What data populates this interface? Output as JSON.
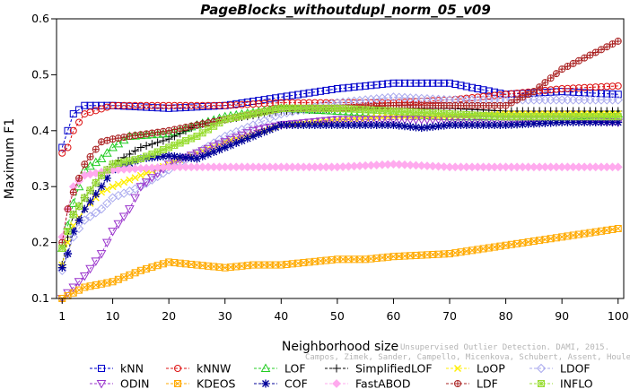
{
  "chart_data": {
    "type": "line",
    "title": "PageBlocks_withoutdupl_norm_05_v09",
    "xlabel": "Neighborhood size",
    "ylabel": "Maximum F1",
    "xlim": [
      0,
      101
    ],
    "ylim": [
      0.1,
      0.6
    ],
    "xticks": [
      1,
      10,
      20,
      30,
      40,
      50,
      60,
      70,
      80,
      90,
      100
    ],
    "yticks": [
      0.1,
      0.2,
      0.3,
      0.4,
      0.5,
      0.6
    ],
    "grid": false,
    "legend_position": "bottom",
    "watermark": {
      "line1": "Unsupervised Outlier Detection. DAMI, 2015.",
      "line2": "Campos, Zimek, Sander, Campello, Micenkova, Schubert, Assent, Houle"
    },
    "series": [
      {
        "name": "kNN",
        "color": "#0000cc",
        "marker": "square",
        "points": [
          [
            1,
            0.37
          ],
          [
            2,
            0.4
          ],
          [
            3,
            0.43
          ],
          [
            5,
            0.445
          ],
          [
            10,
            0.445
          ],
          [
            20,
            0.44
          ],
          [
            30,
            0.445
          ],
          [
            40,
            0.46
          ],
          [
            50,
            0.475
          ],
          [
            60,
            0.485
          ],
          [
            70,
            0.485
          ],
          [
            75,
            0.475
          ],
          [
            80,
            0.465
          ],
          [
            90,
            0.47
          ],
          [
            100,
            0.465
          ]
        ]
      },
      {
        "name": "kNNW",
        "color": "#dd1111",
        "marker": "circle",
        "points": [
          [
            1,
            0.36
          ],
          [
            2,
            0.37
          ],
          [
            3,
            0.4
          ],
          [
            5,
            0.43
          ],
          [
            10,
            0.445
          ],
          [
            20,
            0.445
          ],
          [
            30,
            0.445
          ],
          [
            40,
            0.45
          ],
          [
            50,
            0.45
          ],
          [
            60,
            0.45
          ],
          [
            70,
            0.455
          ],
          [
            80,
            0.465
          ],
          [
            90,
            0.475
          ],
          [
            100,
            0.48
          ]
        ]
      },
      {
        "name": "LOF",
        "color": "#22cc22",
        "marker": "triangle",
        "points": [
          [
            1,
            0.19
          ],
          [
            2,
            0.23
          ],
          [
            3,
            0.27
          ],
          [
            5,
            0.33
          ],
          [
            8,
            0.35
          ],
          [
            10,
            0.37
          ],
          [
            13,
            0.39
          ],
          [
            20,
            0.395
          ],
          [
            25,
            0.41
          ],
          [
            30,
            0.425
          ],
          [
            40,
            0.44
          ],
          [
            50,
            0.435
          ],
          [
            60,
            0.43
          ],
          [
            70,
            0.425
          ],
          [
            80,
            0.425
          ],
          [
            90,
            0.425
          ],
          [
            100,
            0.43
          ]
        ]
      },
      {
        "name": "SimplifiedLOF",
        "color": "#000000",
        "marker": "plus",
        "points": [
          [
            1,
            0.16
          ],
          [
            2,
            0.21
          ],
          [
            3,
            0.25
          ],
          [
            5,
            0.28
          ],
          [
            8,
            0.32
          ],
          [
            10,
            0.34
          ],
          [
            15,
            0.37
          ],
          [
            20,
            0.385
          ],
          [
            25,
            0.41
          ],
          [
            30,
            0.42
          ],
          [
            40,
            0.435
          ],
          [
            50,
            0.44
          ],
          [
            60,
            0.44
          ],
          [
            70,
            0.44
          ],
          [
            80,
            0.435
          ],
          [
            90,
            0.435
          ],
          [
            100,
            0.435
          ]
        ]
      },
      {
        "name": "LoOP",
        "color": "#ffee00",
        "marker": "cross",
        "points": [
          [
            1,
            0.16
          ],
          [
            2,
            0.2
          ],
          [
            3,
            0.23
          ],
          [
            5,
            0.26
          ],
          [
            8,
            0.29
          ],
          [
            10,
            0.3
          ],
          [
            15,
            0.32
          ],
          [
            20,
            0.34
          ],
          [
            25,
            0.36
          ],
          [
            30,
            0.38
          ],
          [
            40,
            0.41
          ],
          [
            50,
            0.42
          ],
          [
            60,
            0.425
          ],
          [
            70,
            0.425
          ],
          [
            80,
            0.43
          ],
          [
            90,
            0.43
          ],
          [
            100,
            0.43
          ]
        ]
      },
      {
        "name": "LDOF",
        "color": "#aaaaee",
        "marker": "diamond",
        "points": [
          [
            1,
            0.15
          ],
          [
            2,
            0.18
          ],
          [
            3,
            0.21
          ],
          [
            5,
            0.24
          ],
          [
            8,
            0.26
          ],
          [
            10,
            0.28
          ],
          [
            15,
            0.3
          ],
          [
            20,
            0.33
          ],
          [
            25,
            0.36
          ],
          [
            30,
            0.39
          ],
          [
            40,
            0.43
          ],
          [
            50,
            0.45
          ],
          [
            60,
            0.46
          ],
          [
            70,
            0.455
          ],
          [
            80,
            0.455
          ],
          [
            90,
            0.455
          ],
          [
            100,
            0.455
          ]
        ]
      },
      {
        "name": "ODIN",
        "color": "#9933cc",
        "marker": "triangle-down",
        "points": [
          [
            1,
            0.1
          ],
          [
            2,
            0.11
          ],
          [
            5,
            0.14
          ],
          [
            8,
            0.18
          ],
          [
            10,
            0.22
          ],
          [
            13,
            0.26
          ],
          [
            15,
            0.3
          ],
          [
            20,
            0.34
          ],
          [
            25,
            0.36
          ],
          [
            30,
            0.38
          ],
          [
            35,
            0.4
          ],
          [
            40,
            0.41
          ],
          [
            50,
            0.42
          ],
          [
            60,
            0.42
          ],
          [
            70,
            0.42
          ],
          [
            80,
            0.42
          ],
          [
            90,
            0.42
          ],
          [
            100,
            0.415
          ]
        ]
      },
      {
        "name": "KDEOS",
        "color": "#ffaa00",
        "marker": "square-x",
        "points": [
          [
            1,
            0.1
          ],
          [
            5,
            0.12
          ],
          [
            10,
            0.13
          ],
          [
            15,
            0.15
          ],
          [
            20,
            0.165
          ],
          [
            25,
            0.16
          ],
          [
            30,
            0.155
          ],
          [
            35,
            0.16
          ],
          [
            40,
            0.16
          ],
          [
            50,
            0.17
          ],
          [
            55,
            0.17
          ],
          [
            60,
            0.175
          ],
          [
            70,
            0.18
          ],
          [
            80,
            0.195
          ],
          [
            90,
            0.21
          ],
          [
            100,
            0.225
          ]
        ]
      },
      {
        "name": "COF",
        "color": "#000099",
        "marker": "asterisk",
        "points": [
          [
            1,
            0.155
          ],
          [
            2,
            0.18
          ],
          [
            3,
            0.22
          ],
          [
            5,
            0.26
          ],
          [
            8,
            0.3
          ],
          [
            10,
            0.33
          ],
          [
            15,
            0.35
          ],
          [
            20,
            0.355
          ],
          [
            25,
            0.35
          ],
          [
            30,
            0.37
          ],
          [
            35,
            0.39
          ],
          [
            40,
            0.41
          ],
          [
            50,
            0.41
          ],
          [
            60,
            0.41
          ],
          [
            65,
            0.405
          ],
          [
            70,
            0.41
          ],
          [
            80,
            0.41
          ],
          [
            90,
            0.415
          ],
          [
            100,
            0.415
          ]
        ]
      },
      {
        "name": "FastABOD",
        "color": "#ffaaee",
        "marker": "diamond-filled",
        "points": [
          [
            1,
            0.21
          ],
          [
            2,
            0.26
          ],
          [
            3,
            0.3
          ],
          [
            5,
            0.32
          ],
          [
            10,
            0.33
          ],
          [
            20,
            0.335
          ],
          [
            30,
            0.335
          ],
          [
            40,
            0.335
          ],
          [
            50,
            0.335
          ],
          [
            60,
            0.34
          ],
          [
            70,
            0.335
          ],
          [
            80,
            0.335
          ],
          [
            90,
            0.335
          ],
          [
            100,
            0.335
          ]
        ]
      },
      {
        "name": "LDF",
        "color": "#aa2222",
        "marker": "circle-plus",
        "points": [
          [
            1,
            0.2
          ],
          [
            2,
            0.26
          ],
          [
            3,
            0.29
          ],
          [
            5,
            0.34
          ],
          [
            8,
            0.38
          ],
          [
            10,
            0.385
          ],
          [
            13,
            0.39
          ],
          [
            20,
            0.4
          ],
          [
            30,
            0.42
          ],
          [
            40,
            0.44
          ],
          [
            50,
            0.44
          ],
          [
            60,
            0.445
          ],
          [
            70,
            0.445
          ],
          [
            80,
            0.445
          ],
          [
            85,
            0.47
          ],
          [
            90,
            0.51
          ],
          [
            95,
            0.535
          ],
          [
            100,
            0.56
          ]
        ]
      },
      {
        "name": "INFLO",
        "color": "#99dd33",
        "marker": "square-star",
        "points": [
          [
            1,
            0.19
          ],
          [
            2,
            0.22
          ],
          [
            3,
            0.25
          ],
          [
            5,
            0.28
          ],
          [
            8,
            0.32
          ],
          [
            10,
            0.34
          ],
          [
            15,
            0.35
          ],
          [
            20,
            0.37
          ],
          [
            25,
            0.39
          ],
          [
            30,
            0.42
          ],
          [
            40,
            0.44
          ],
          [
            50,
            0.44
          ],
          [
            60,
            0.435
          ],
          [
            70,
            0.43
          ],
          [
            80,
            0.425
          ],
          [
            90,
            0.425
          ],
          [
            100,
            0.425
          ]
        ]
      }
    ]
  }
}
